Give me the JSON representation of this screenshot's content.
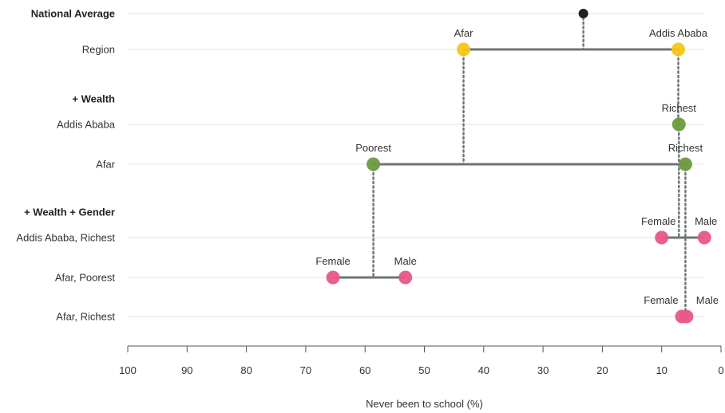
{
  "chart_data": {
    "type": "dumbbell",
    "xlabel": "Never been to school (%)",
    "xlim": [
      100,
      0
    ],
    "x_ticks": [
      100,
      90,
      80,
      70,
      60,
      50,
      40,
      30,
      20,
      10,
      0
    ],
    "x_reversed": true,
    "colors": {
      "national": "#222222",
      "region": "#f5c518",
      "wealth": "#6b9a3e",
      "gender": "#e8578a",
      "connector": "#6e7477",
      "dotted": "#6e7477",
      "gridline": "#e3e3e3"
    },
    "groups": [
      {
        "key": "national",
        "label": "National Average",
        "bold": true
      },
      {
        "key": "wealth_header",
        "label": "+ Wealth",
        "bold": true
      },
      {
        "key": "gender_header",
        "label": "+ Wealth + Gender",
        "bold": true
      }
    ],
    "rows": [
      {
        "key": "region",
        "label": "Region"
      },
      {
        "key": "aa",
        "label": "Addis Ababa"
      },
      {
        "key": "afar",
        "label": "Afar"
      },
      {
        "key": "aa_rich",
        "label": "Addis Ababa, Richest"
      },
      {
        "key": "afar_poor",
        "label": "Afar, Poorest"
      },
      {
        "key": "afar_rich",
        "label": "Afar, Richest"
      }
    ],
    "points": [
      {
        "row": "national",
        "value": 23.2,
        "color": "national",
        "label": ""
      },
      {
        "row": "region",
        "value": 43.4,
        "color": "region",
        "label": "Afar"
      },
      {
        "row": "region",
        "value": 7.2,
        "color": "region",
        "label": "Addis Ababa"
      },
      {
        "row": "aa",
        "value": 7.1,
        "color": "wealth",
        "label": "Richest"
      },
      {
        "row": "afar",
        "value": 58.6,
        "color": "wealth",
        "label": "Poorest"
      },
      {
        "row": "afar",
        "value": 6.0,
        "color": "wealth",
        "label": "Richest"
      },
      {
        "row": "aa_rich",
        "value": 10.0,
        "color": "gender",
        "label": "Female"
      },
      {
        "row": "aa_rich",
        "value": 2.8,
        "color": "gender",
        "label": "Male"
      },
      {
        "row": "afar_poor",
        "value": 65.4,
        "color": "gender",
        "label": "Female"
      },
      {
        "row": "afar_poor",
        "value": 53.2,
        "color": "gender",
        "label": "Male"
      },
      {
        "row": "afar_rich",
        "value": 6.6,
        "color": "gender",
        "label": "Female"
      },
      {
        "row": "afar_rich",
        "value": 5.8,
        "color": "gender",
        "label": "Male"
      }
    ],
    "connectors": [
      {
        "row": "region",
        "from": 43.4,
        "to": 7.2
      },
      {
        "row": "afar",
        "from": 58.6,
        "to": 6.0
      },
      {
        "row": "aa_rich",
        "from": 10.0,
        "to": 2.8
      },
      {
        "row": "afar_poor",
        "from": 65.4,
        "to": 53.2
      },
      {
        "row": "afar_rich",
        "from": 6.6,
        "to": 5.8
      }
    ],
    "drops": [
      {
        "value": 23.2,
        "from": "national",
        "to": "region"
      },
      {
        "value": 43.4,
        "from": "region",
        "to": "afar"
      },
      {
        "value": 7.2,
        "from": "region",
        "to": "aa"
      },
      {
        "value": 7.1,
        "from": "aa",
        "to": "aa_rich"
      },
      {
        "value": 58.6,
        "from": "afar",
        "to": "afar_poor"
      },
      {
        "value": 6.0,
        "from": "afar",
        "to": "afar_rich"
      }
    ]
  }
}
